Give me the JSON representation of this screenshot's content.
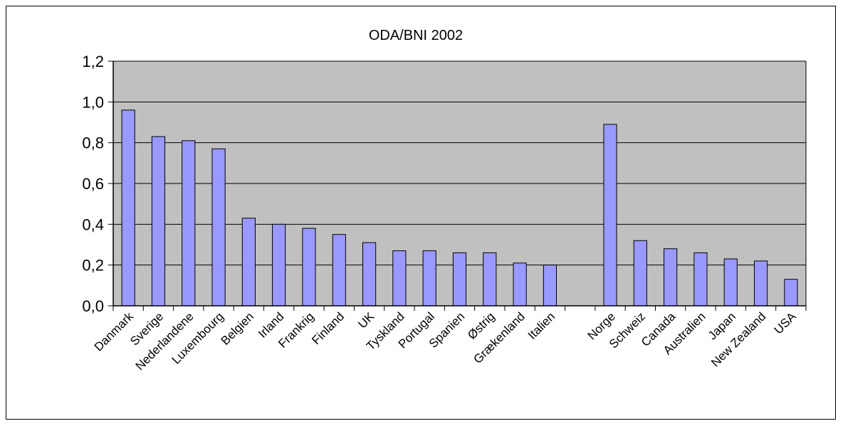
{
  "chart_data": {
    "type": "bar",
    "title": "ODA/BNI 2002",
    "xlabel": "",
    "ylabel": "",
    "categories": [
      "Danmark",
      "Sverige",
      "Nederlandene",
      "Luxembourg",
      "Belgien",
      "Irland",
      "Frankrig",
      "Finland",
      "UK",
      "Tyskland",
      "Portugal",
      "Spanien",
      "Østrig",
      "Grækenland",
      "Italien",
      "",
      "Norge",
      "Schweiz",
      "Canada",
      "Australien",
      "Japan",
      "New Zealand",
      "USA"
    ],
    "values": [
      0.96,
      0.83,
      0.81,
      0.77,
      0.43,
      0.4,
      0.38,
      0.35,
      0.31,
      0.27,
      0.27,
      0.26,
      0.26,
      0.21,
      0.2,
      null,
      0.89,
      0.32,
      0.28,
      0.26,
      0.23,
      0.22,
      0.13
    ],
    "ylim": [
      0,
      1.2
    ],
    "yticks": [
      "0,0",
      "0,2",
      "0,4",
      "0,6",
      "0,8",
      "1,0",
      "1,2"
    ],
    "grid": true,
    "legend": "none",
    "colors": {
      "bar": "#9999FF",
      "plot_background": "#C0C0C0",
      "grid": "#000000",
      "axis": "#000000"
    }
  }
}
